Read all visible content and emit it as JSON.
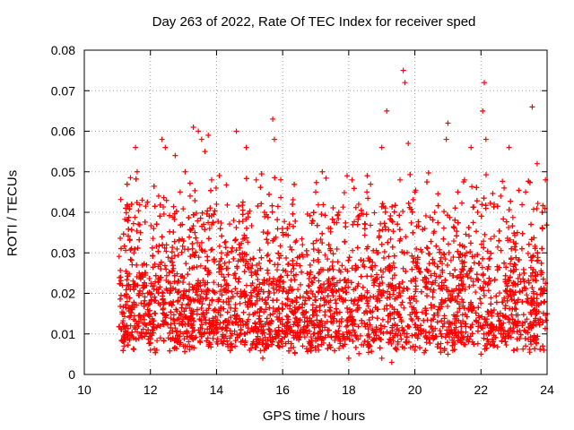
{
  "chart_data": {
    "type": "scatter",
    "title": "Day 263 of 2022, Rate Of TEC Index for receiver sped",
    "xlabel": "GPS time / hours",
    "ylabel": "ROTI / TECUs",
    "xlim": [
      10,
      24
    ],
    "ylim": [
      0,
      0.08
    ],
    "xticks": [
      10,
      12,
      14,
      16,
      18,
      20,
      22,
      24
    ],
    "yticks": [
      0,
      0.01,
      0.02,
      0.03,
      0.04,
      0.05,
      0.06,
      0.07,
      0.08
    ],
    "ytick_labels": [
      "0",
      "0.01",
      "0.02",
      "0.03",
      "0.04",
      "0.05",
      "0.06",
      "0.07",
      "0.08"
    ],
    "grid": true,
    "marker": "+",
    "color": "#ff0000",
    "x_range_data": [
      11.05,
      24.0
    ],
    "typical_band": [
      0.005,
      0.03
    ],
    "series": [
      {
        "name": "ROTI",
        "points": [
          [
            11.1,
            0.024
          ],
          [
            11.15,
            0.022
          ],
          [
            11.2,
            0.008
          ],
          [
            11.3,
            0.018
          ],
          [
            11.4,
            0.012
          ],
          [
            11.5,
            0.03
          ],
          [
            11.55,
            0.056
          ],
          [
            11.6,
            0.05
          ],
          [
            11.65,
            0.02
          ],
          [
            11.75,
            0.043
          ],
          [
            11.85,
            0.015
          ],
          [
            12.0,
            0.02
          ],
          [
            12.1,
            0.036
          ],
          [
            12.25,
            0.044
          ],
          [
            12.35,
            0.058
          ],
          [
            12.45,
            0.056
          ],
          [
            12.6,
            0.028
          ],
          [
            12.75,
            0.054
          ],
          [
            12.9,
            0.045
          ],
          [
            13.05,
            0.05
          ],
          [
            13.2,
            0.044
          ],
          [
            13.3,
            0.061
          ],
          [
            13.45,
            0.06
          ],
          [
            13.55,
            0.058
          ],
          [
            13.65,
            0.055
          ],
          [
            13.75,
            0.059
          ],
          [
            13.85,
            0.048
          ],
          [
            14.0,
            0.042
          ],
          [
            14.15,
            0.03
          ],
          [
            14.35,
            0.022
          ],
          [
            14.6,
            0.06
          ],
          [
            14.9,
            0.056
          ],
          [
            15.2,
            0.048
          ],
          [
            15.45,
            0.04
          ],
          [
            15.7,
            0.063
          ],
          [
            15.75,
            0.058
          ],
          [
            16.0,
            0.035
          ],
          [
            16.3,
            0.042
          ],
          [
            16.6,
            0.032
          ],
          [
            16.9,
            0.038
          ],
          [
            17.0,
            0.045
          ],
          [
            17.2,
            0.05
          ],
          [
            17.45,
            0.036
          ],
          [
            17.7,
            0.04
          ],
          [
            17.95,
            0.049
          ],
          [
            18.1,
            0.048
          ],
          [
            18.3,
            0.042
          ],
          [
            18.55,
            0.045
          ],
          [
            18.85,
            0.03
          ],
          [
            19.0,
            0.056
          ],
          [
            19.15,
            0.065
          ],
          [
            19.3,
            0.038
          ],
          [
            19.55,
            0.048
          ],
          [
            19.65,
            0.075
          ],
          [
            19.7,
            0.072
          ],
          [
            19.8,
            0.057
          ],
          [
            20.0,
            0.045
          ],
          [
            20.3,
            0.036
          ],
          [
            20.6,
            0.04
          ],
          [
            20.95,
            0.058
          ],
          [
            21.0,
            0.062
          ],
          [
            21.3,
            0.045
          ],
          [
            21.5,
            0.048
          ],
          [
            21.7,
            0.056
          ],
          [
            21.9,
            0.04
          ],
          [
            22.05,
            0.065
          ],
          [
            22.1,
            0.072
          ],
          [
            22.15,
            0.058
          ],
          [
            22.4,
            0.042
          ],
          [
            22.7,
            0.046
          ],
          [
            22.85,
            0.056
          ],
          [
            23.1,
            0.035
          ],
          [
            23.35,
            0.045
          ],
          [
            23.55,
            0.066
          ],
          [
            23.7,
            0.052
          ],
          [
            23.85,
            0.04
          ],
          [
            23.95,
            0.048
          ],
          [
            24.0,
            0.015
          ],
          [
            11.2,
            0.007
          ],
          [
            12.0,
            0.006
          ],
          [
            13.0,
            0.007
          ],
          [
            14.0,
            0.008
          ],
          [
            15.0,
            0.006
          ],
          [
            15.4,
            0.004
          ],
          [
            16.0,
            0.007
          ],
          [
            17.0,
            0.006
          ],
          [
            18.0,
            0.004
          ],
          [
            19.0,
            0.004
          ],
          [
            19.3,
            0.003
          ],
          [
            20.0,
            0.006
          ],
          [
            21.0,
            0.005
          ],
          [
            22.0,
            0.005
          ],
          [
            23.0,
            0.006
          ],
          [
            23.9,
            0.006
          ]
        ]
      }
    ]
  }
}
